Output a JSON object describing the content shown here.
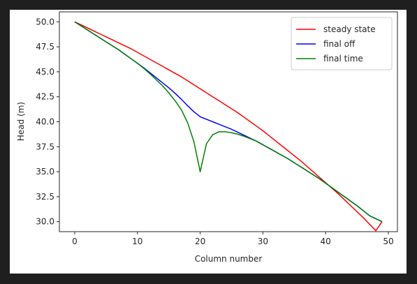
{
  "chart_data": {
    "type": "line",
    "title": "",
    "xlabel": "Column number",
    "ylabel": "Head (m)",
    "xlim": [
      -2.45,
      51.45
    ],
    "ylim": [
      29.0,
      51.0
    ],
    "xticks": [
      0,
      10,
      20,
      30,
      40,
      50
    ],
    "yticks": [
      30.0,
      32.5,
      35.0,
      37.5,
      40.0,
      42.5,
      45.0,
      47.5,
      50.0
    ],
    "xtick_labels": [
      "0",
      "10",
      "20",
      "30",
      "40",
      "50"
    ],
    "ytick_labels": [
      "30.0",
      "32.5",
      "35.0",
      "37.5",
      "40.0",
      "42.5",
      "45.0",
      "47.5",
      "50.0"
    ],
    "grid": false,
    "legend_position": "top-right",
    "x": [
      0,
      1,
      2,
      3,
      4,
      5,
      6,
      7,
      8,
      9,
      10,
      11,
      12,
      13,
      14,
      15,
      16,
      17,
      18,
      19,
      20,
      21,
      22,
      23,
      24,
      25,
      26,
      27,
      28,
      29,
      30,
      31,
      32,
      33,
      34,
      35,
      36,
      37,
      38,
      39,
      40,
      41,
      42,
      43,
      44,
      45,
      46,
      47,
      48,
      49
    ],
    "series": [
      {
        "name": "steady state",
        "color": "#ff0000",
        "values": [
          50.0,
          49.7,
          49.4,
          49.1,
          48.8,
          48.5,
          48.2,
          47.9,
          47.6,
          47.3,
          46.95,
          46.6,
          46.25,
          45.9,
          45.55,
          45.2,
          44.85,
          44.5,
          44.1,
          43.7,
          43.3,
          42.9,
          42.5,
          42.1,
          41.7,
          41.3,
          40.9,
          40.45,
          40.0,
          39.55,
          39.1,
          38.6,
          38.1,
          37.6,
          37.1,
          36.6,
          36.1,
          35.55,
          35.0,
          34.45,
          33.9,
          33.35,
          32.8,
          32.2,
          31.6,
          31.0,
          30.4,
          29.75,
          29.1,
          30.0
        ]
      },
      {
        "name": "final off",
        "color": "#0000ff",
        "values": [
          50.0,
          49.6,
          49.2,
          48.8,
          48.4,
          48.0,
          47.6,
          47.2,
          46.75,
          46.3,
          45.85,
          45.4,
          44.9,
          44.4,
          43.9,
          43.4,
          42.85,
          42.25,
          41.6,
          41.0,
          40.5,
          40.25,
          40.0,
          39.75,
          39.5,
          39.25,
          38.95,
          38.65,
          38.35,
          38.05,
          37.7,
          37.35,
          37.0,
          36.65,
          36.3,
          35.9,
          35.5,
          35.1,
          34.7,
          34.3,
          33.85,
          33.4,
          32.95,
          32.5,
          32.05,
          31.6,
          31.1,
          30.6,
          30.3,
          30.0
        ]
      },
      {
        "name": "final time",
        "color": "#008000",
        "values": [
          50.0,
          49.6,
          49.2,
          48.8,
          48.4,
          48.0,
          47.6,
          47.2,
          46.75,
          46.3,
          45.85,
          45.35,
          44.8,
          44.2,
          43.6,
          42.9,
          42.1,
          41.2,
          39.9,
          38.0,
          35.0,
          37.8,
          38.7,
          39.0,
          39.0,
          38.9,
          38.75,
          38.55,
          38.3,
          38.05,
          37.7,
          37.35,
          37.0,
          36.65,
          36.3,
          35.9,
          35.5,
          35.1,
          34.7,
          34.3,
          33.85,
          33.4,
          32.95,
          32.5,
          32.05,
          31.6,
          31.1,
          30.6,
          30.3,
          30.0
        ]
      }
    ]
  }
}
